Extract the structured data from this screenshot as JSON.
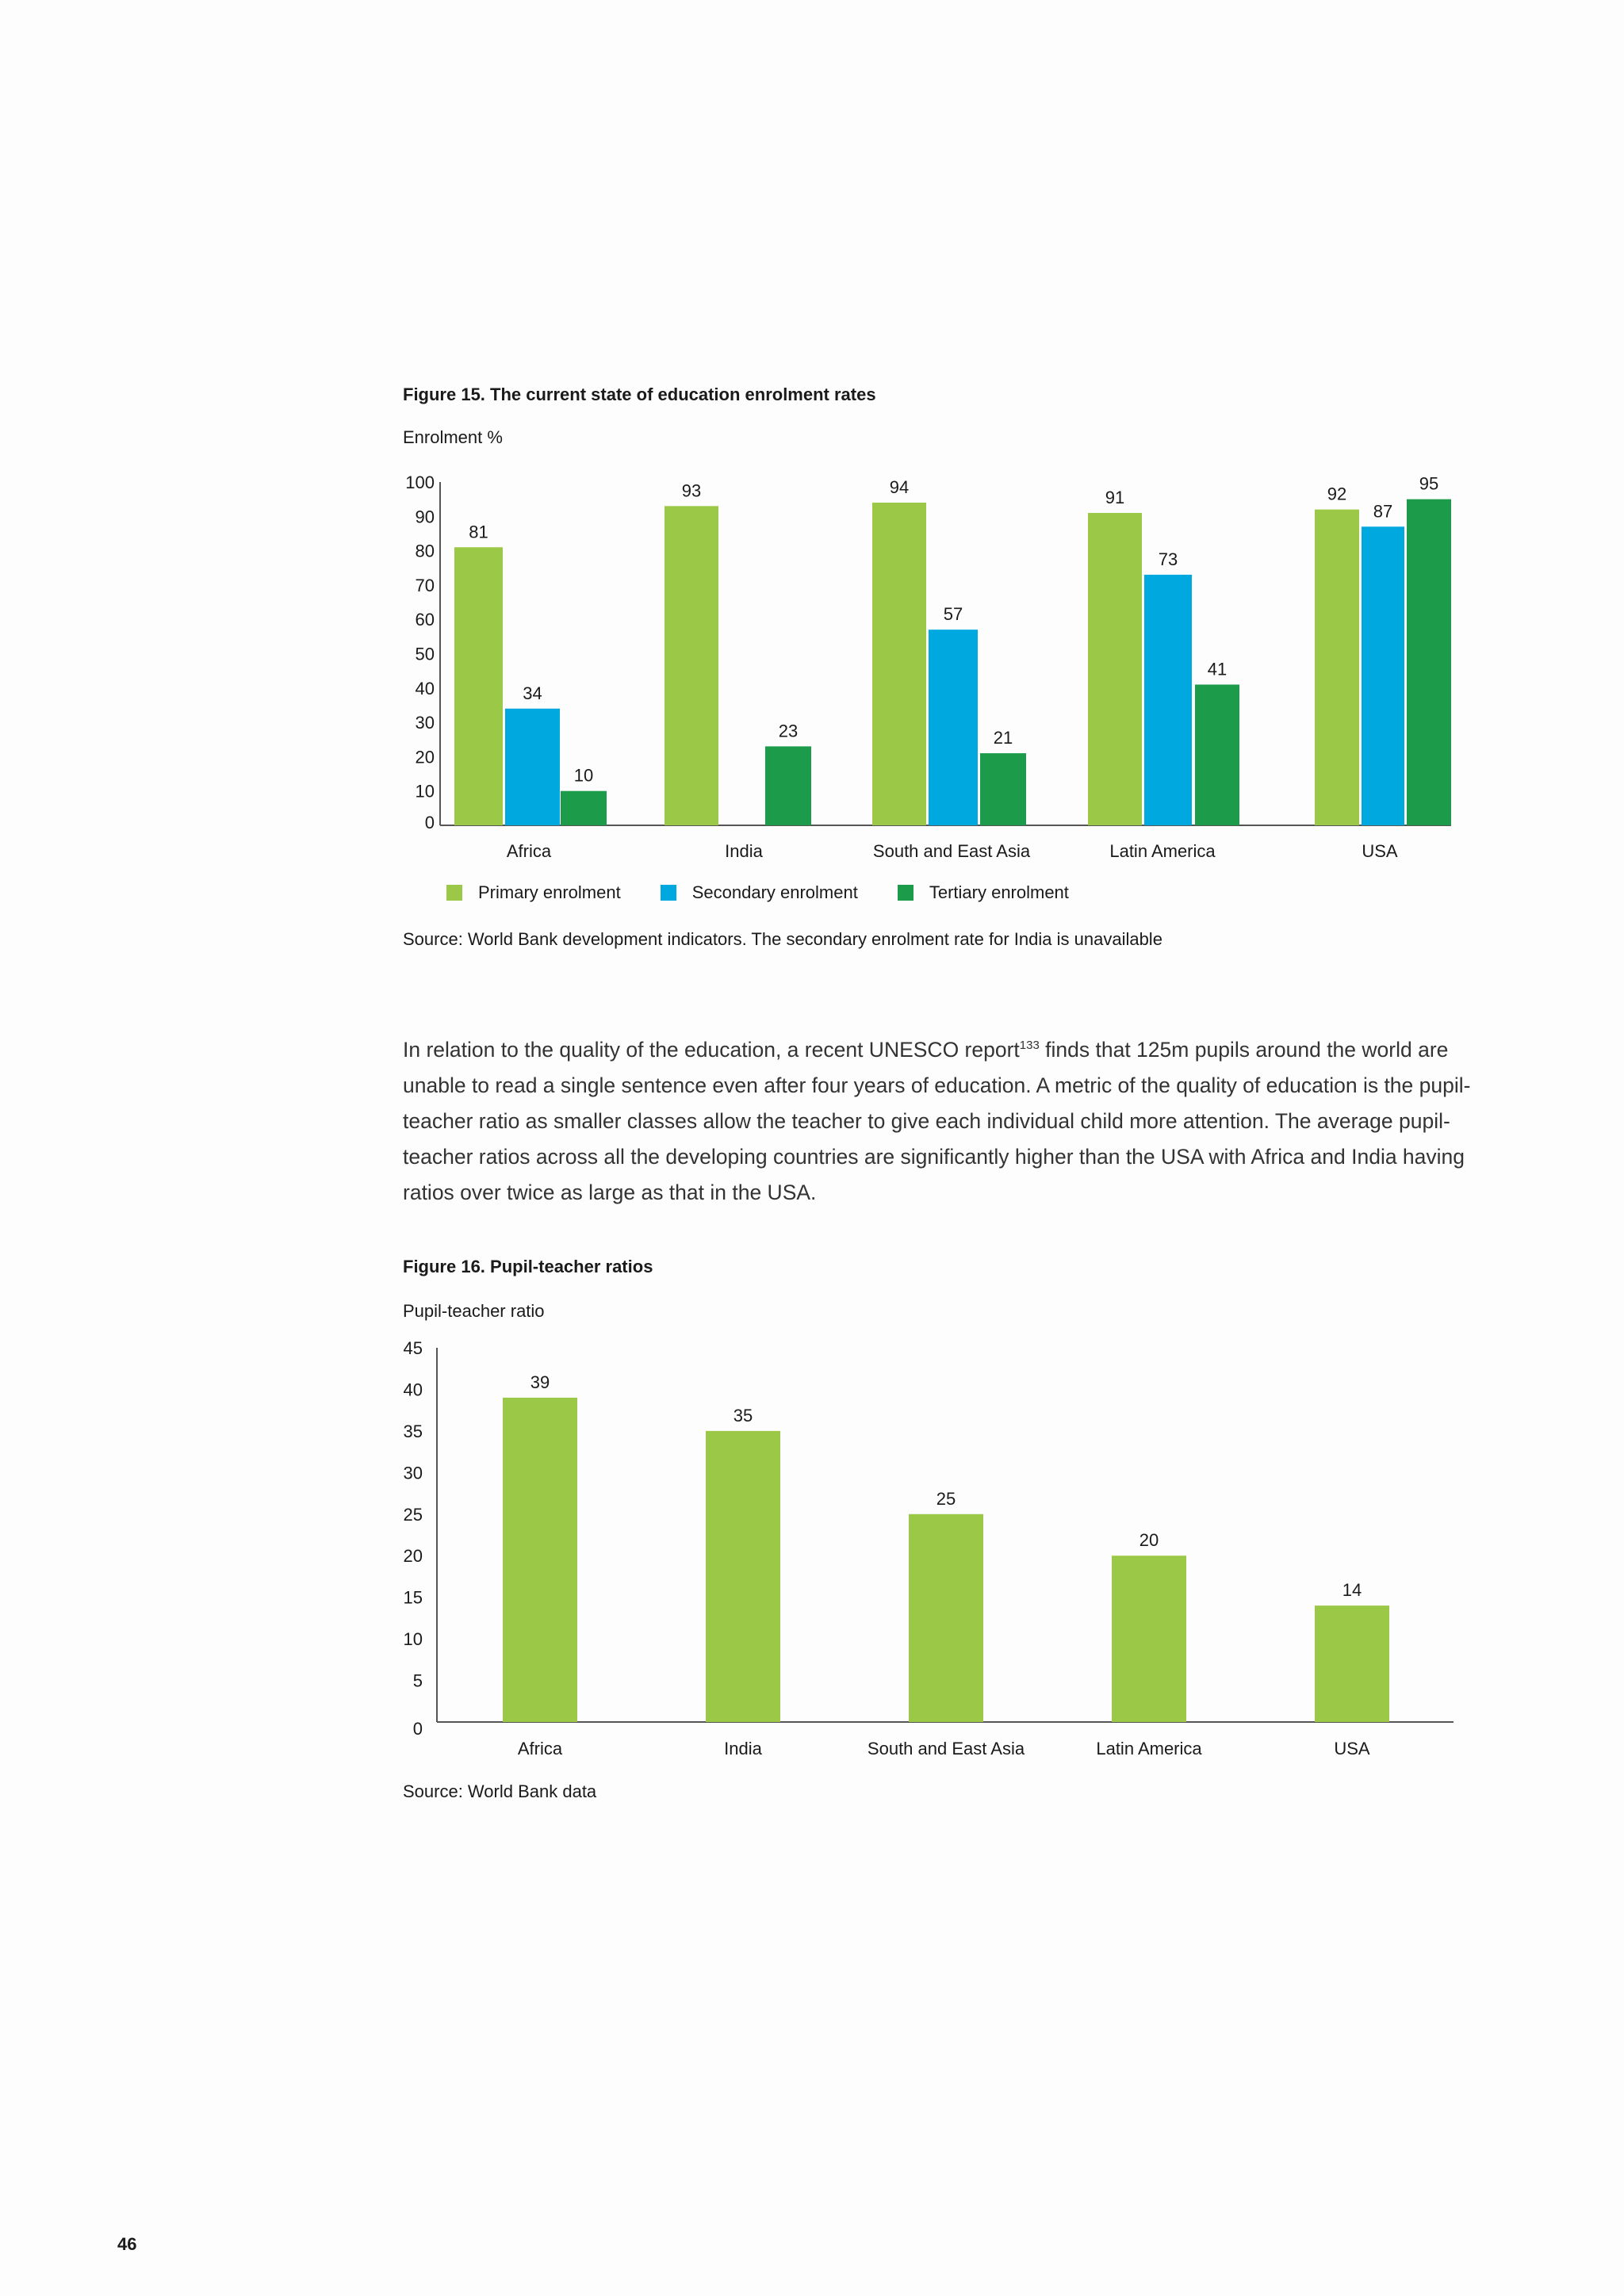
{
  "page": {
    "number": "46"
  },
  "colors": {
    "primary": "#9bc846",
    "secondary": "#00a8e0",
    "tertiary": "#1c9b4a",
    "axis": "#555555"
  },
  "figure15": {
    "title": "Figure 15. The current state of education enrolment rates",
    "source": "Source: World Bank development indicators. The secondary enrolment rate for India is unavailable",
    "legend": {
      "primary": "Primary enrolment",
      "secondary": "Secondary enrolment",
      "tertiary": "Tertiary enrolment"
    }
  },
  "paragraph": {
    "before": "In relation to the quality of the education, a recent UNESCO report",
    "ref": "133",
    "after": " finds that 125m pupils around the world are unable to read a single sentence even after four years of education. A metric of the quality of education is the pupil-teacher ratio as smaller classes allow the teacher to give each individual child more attention. The average pupil-teacher ratios across all the developing countries are significantly higher than the USA with Africa and India having ratios over twice as large as that in the USA."
  },
  "figure16": {
    "title": "Figure 16. Pupil-teacher ratios",
    "source": "Source: World Bank data"
  },
  "chart_data": [
    {
      "type": "bar",
      "ylabel": "Enrolment %",
      "ylim": [
        0,
        100
      ],
      "yticks": [
        0,
        10,
        20,
        30,
        40,
        50,
        60,
        70,
        80,
        90,
        100
      ],
      "categories": [
        "Africa",
        "India",
        "South and East Asia",
        "Latin America",
        "USA"
      ],
      "series": [
        {
          "name": "Primary enrolment",
          "values": [
            81,
            93,
            94,
            91,
            92
          ]
        },
        {
          "name": "Secondary enrolment",
          "values": [
            34,
            null,
            57,
            73,
            87
          ]
        },
        {
          "name": "Tertiary enrolment",
          "values": [
            10,
            23,
            21,
            41,
            95
          ]
        }
      ],
      "legend": "bottom",
      "grid": false
    },
    {
      "type": "bar",
      "ylabel": "Pupil-teacher ratio",
      "ylim": [
        0,
        45
      ],
      "yticks": [
        0,
        5,
        10,
        15,
        20,
        25,
        30,
        35,
        40,
        45
      ],
      "categories": [
        "Africa",
        "India",
        "South and East Asia",
        "Latin America",
        "USA"
      ],
      "values": [
        39,
        35,
        25,
        20,
        14
      ],
      "grid": false
    }
  ]
}
